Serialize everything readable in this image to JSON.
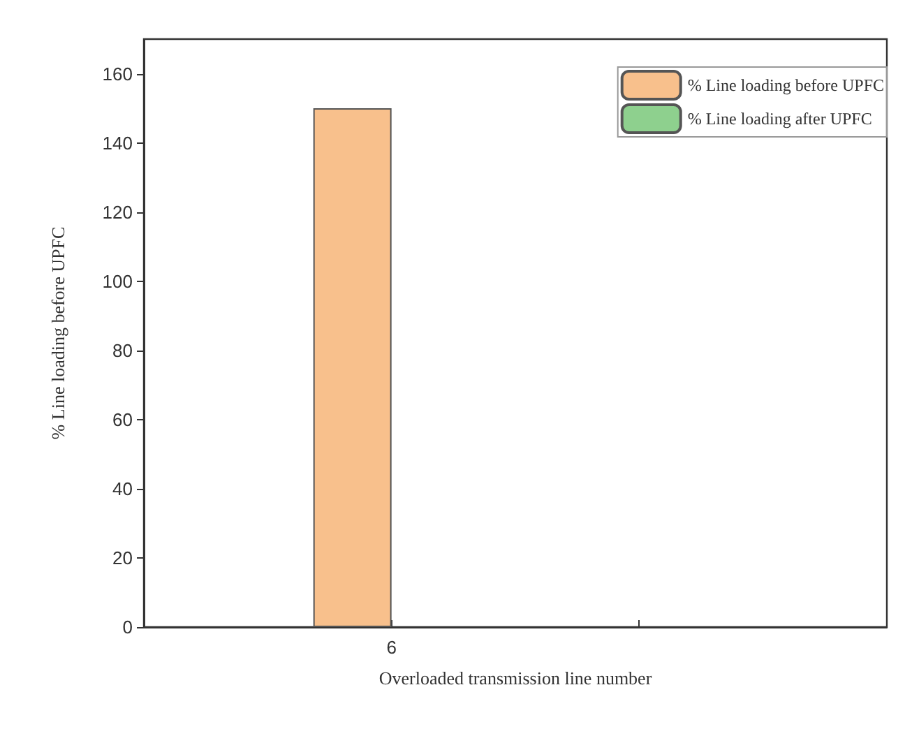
{
  "chart_data": {
    "type": "bar",
    "xlabel": "Overloaded transmission line number",
    "ylabel": "% Line loading before UPFC",
    "categories": [
      "6",
      null
    ],
    "series": [
      {
        "name": "% Line loading before UPFC",
        "color": "#f8c08c",
        "values": [
          150,
          null
        ]
      },
      {
        "name": "% Line loading after UPFC",
        "color": "#8ed08e",
        "values": [
          null,
          null
        ]
      }
    ],
    "ylim": [
      0,
      170
    ],
    "yticks": [
      0,
      20,
      40,
      60,
      80,
      100,
      120,
      140,
      160
    ],
    "grid": false,
    "legend": "top right"
  }
}
